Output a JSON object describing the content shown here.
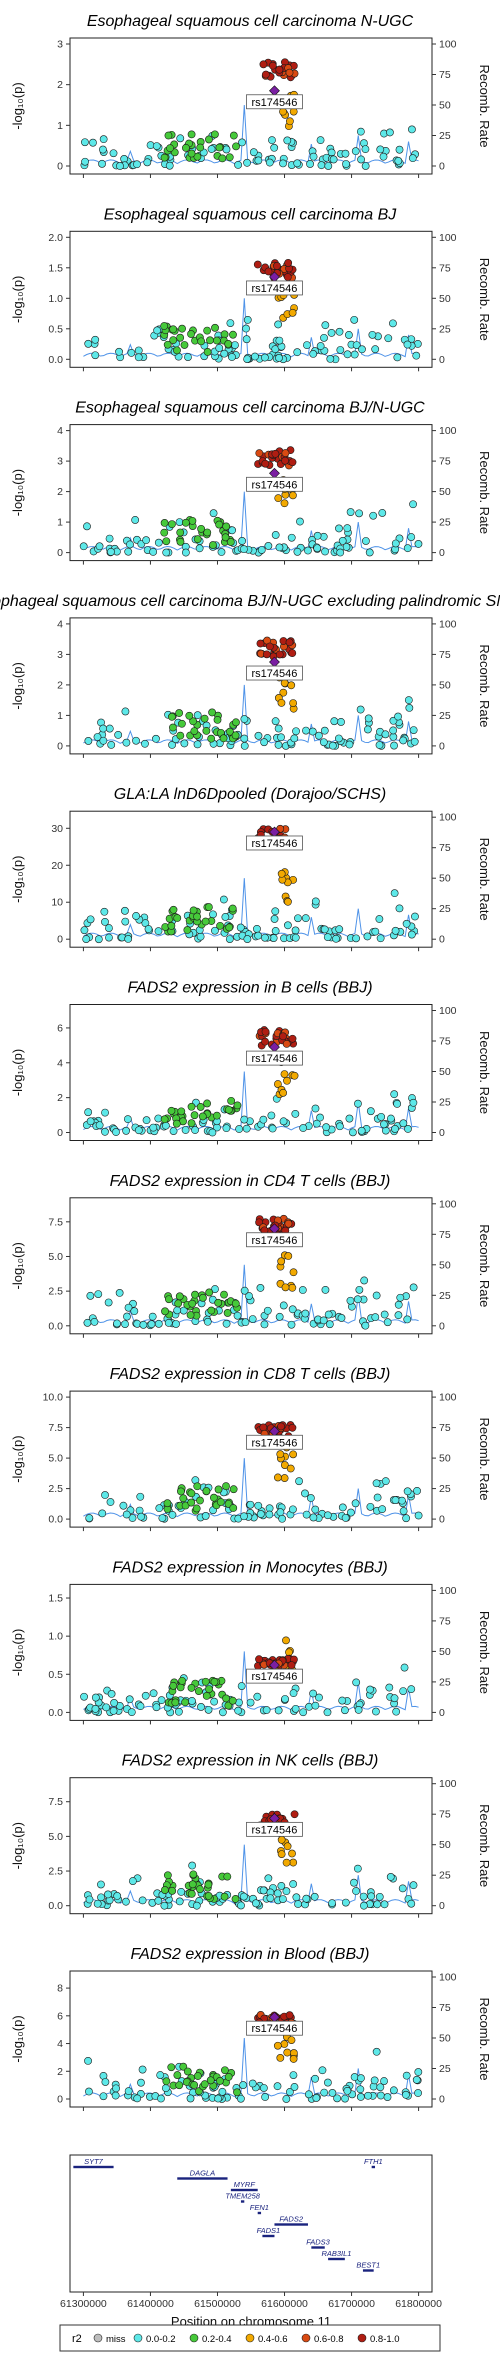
{
  "chart_data": {
    "type": "scatter",
    "lead_variant": "rs174546",
    "x_axis": {
      "label": "Position on chromosome 11",
      "range": [
        61280000,
        61820000
      ],
      "ticks": [
        "61300000",
        "61400000",
        "61500000",
        "61600000",
        "61700000",
        "61800000"
      ]
    },
    "y_label": "-log₁₀(p)",
    "y2_label": "Recomb. Rate",
    "y2_ticks": [
      "0",
      "25",
      "50",
      "75",
      "100"
    ],
    "legend": {
      "title": "r2",
      "position": "bottom",
      "items": [
        {
          "label": "miss",
          "color": "#bdbdbd"
        },
        {
          "label": "0.0-0.2",
          "color": "#5de8e8"
        },
        {
          "label": "0.2-0.4",
          "color": "#46c93a"
        },
        {
          "label": "0.4-0.6",
          "color": "#f2a900"
        },
        {
          "label": "0.6-0.8",
          "color": "#d94a12"
        },
        {
          "label": "0.8-1.0",
          "color": "#b01d12"
        }
      ]
    },
    "recomb_line_color": "#4f93e8",
    "lead_color": "#7a1fa2",
    "panels": [
      {
        "title": "Esophageal squamous cell carcinoma N-UGC",
        "ymax": 3,
        "yticks": [
          "0",
          "1",
          "2",
          "3"
        ],
        "lead": 1.85,
        "top": 2.5
      },
      {
        "title": "Esophageal squamous cell carcinoma BJ",
        "ymax": 2.0,
        "yticks": [
          "0.0",
          "0.5",
          "1.0",
          "1.5",
          "2.0"
        ],
        "lead": 1.35,
        "top": 1.55
      },
      {
        "title": "Esophageal squamous cell carcinoma BJ/N-UGC",
        "ymax": 4,
        "yticks": [
          "0",
          "1",
          "2",
          "3",
          "4"
        ],
        "lead": 2.6,
        "top": 3.3
      },
      {
        "title": "Esophageal squamous cell carcinoma BJ/N-UGC excluding palindromic SNPs",
        "ymax": 4,
        "yticks": [
          "0",
          "1",
          "2",
          "3",
          "4"
        ],
        "lead": 2.75,
        "top": 3.4
      },
      {
        "title": "GLA:LA lnD6Dpooled (Dorajoo/SCHS)",
        "ymax": 33,
        "yticks": [
          "0",
          "10",
          "20",
          "30"
        ],
        "lead": 29,
        "top": 29.5
      },
      {
        "title": "FADS2 expression in B cells (BBJ)",
        "ymax": 7,
        "yticks": [
          "0",
          "2",
          "4",
          "6"
        ],
        "lead": 4.9,
        "top": 5.8
      },
      {
        "title": "FADS2 expression in CD4 T cells (BBJ)",
        "ymax": 8.8,
        "yticks": [
          "0.0",
          "2.5",
          "5.0",
          "7.5"
        ],
        "lead": 7.0,
        "top": 7.6
      },
      {
        "title": "FADS2 expression in CD8 T cells (BBJ)",
        "ymax": 10,
        "yticks": [
          "0.0",
          "2.5",
          "5.0",
          "7.5",
          "10.0"
        ],
        "lead": 7.2,
        "top": 7.6
      },
      {
        "title": "FADS2 expression in Monocytes (BBJ)",
        "ymax": 1.6,
        "yticks": [
          "0.0",
          "0.5",
          "1.0",
          "1.5"
        ],
        "lead": 0.62,
        "top": 0.7
      },
      {
        "title": "FADS2 expression in NK cells (BBJ)",
        "ymax": 8.8,
        "yticks": [
          "0.0",
          "2.5",
          "5.0",
          "7.5"
        ],
        "lead": 6.3,
        "top": 6.5
      },
      {
        "title": "FADS2 expression in Blood (BBJ)",
        "ymax": 8.8,
        "yticks": [
          "0",
          "2",
          "4",
          "6",
          "8"
        ],
        "lead": 5.9,
        "top": 6.0
      }
    ],
    "genes": [
      {
        "name": "SYT7",
        "start": 61285000,
        "end": 61345000,
        "row": 0
      },
      {
        "name": "DAGLA",
        "start": 61440000,
        "end": 61515000,
        "row": 1
      },
      {
        "name": "FTH1",
        "start": 61730000,
        "end": 61735000,
        "row": 0
      },
      {
        "name": "MYRF",
        "start": 61520000,
        "end": 61560000,
        "row": 2
      },
      {
        "name": "TMEM258",
        "start": 61535000,
        "end": 61540000,
        "row": 3
      },
      {
        "name": "FEN1",
        "start": 61560000,
        "end": 61565000,
        "row": 4
      },
      {
        "name": "FADS2",
        "start": 61585000,
        "end": 61635000,
        "row": 5
      },
      {
        "name": "FADS1",
        "start": 61567000,
        "end": 61585000,
        "row": 6
      },
      {
        "name": "FADS3",
        "start": 61640000,
        "end": 61660000,
        "row": 7
      },
      {
        "name": "RAB3IL1",
        "start": 61665000,
        "end": 61690000,
        "row": 8
      },
      {
        "name": "BEST1",
        "start": 61717000,
        "end": 61733000,
        "row": 9
      }
    ]
  }
}
